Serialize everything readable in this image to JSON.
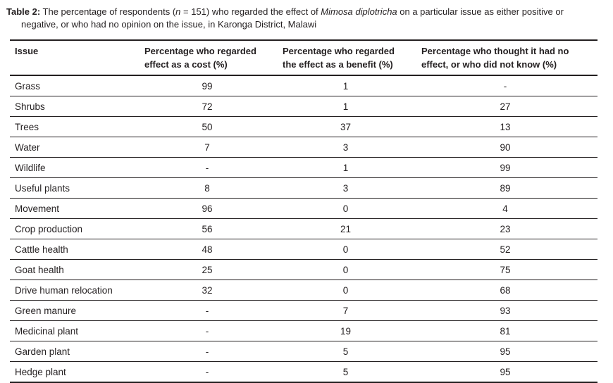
{
  "caption": {
    "label": "Table 2:",
    "text_before_n": " The percentage of respondents (",
    "n_var": "n",
    "text_after_n": " = 151) who regarded the effect of ",
    "species": "Mimosa diplotricha",
    "text_after_species": " on a particular issue as either positive or negative, or who had no opinion on the issue, in Karonga District, Malawi"
  },
  "table": {
    "headers": [
      "Issue",
      "Percentage who regarded effect as a cost (%)",
      "Percentage who regarded the effect as a benefit (%)",
      "Percentage who thought it had no effect, or who did not know (%)"
    ],
    "rows": [
      [
        "Grass",
        "99",
        "1",
        "-"
      ],
      [
        "Shrubs",
        "72",
        "1",
        "27"
      ],
      [
        "Trees",
        "50",
        "37",
        "13"
      ],
      [
        "Water",
        "7",
        "3",
        "90"
      ],
      [
        "Wildlife",
        "-",
        "1",
        "99"
      ],
      [
        "Useful plants",
        "8",
        "3",
        "89"
      ],
      [
        "Movement",
        "96",
        "0",
        "4"
      ],
      [
        "Crop production",
        "56",
        "21",
        "23"
      ],
      [
        "Cattle health",
        "48",
        "0",
        "52"
      ],
      [
        "Goat health",
        "25",
        "0",
        "75"
      ],
      [
        "Drive human relocation",
        "32",
        "0",
        "68"
      ],
      [
        "Green manure",
        "-",
        "7",
        "93"
      ],
      [
        "Medicinal plant",
        "-",
        "19",
        "81"
      ],
      [
        "Garden plant",
        "-",
        "5",
        "95"
      ],
      [
        "Hedge plant",
        "-",
        "5",
        "95"
      ]
    ]
  },
  "colors": {
    "text": "#231f20",
    "rule": "#231f20",
    "background": "#ffffff"
  }
}
